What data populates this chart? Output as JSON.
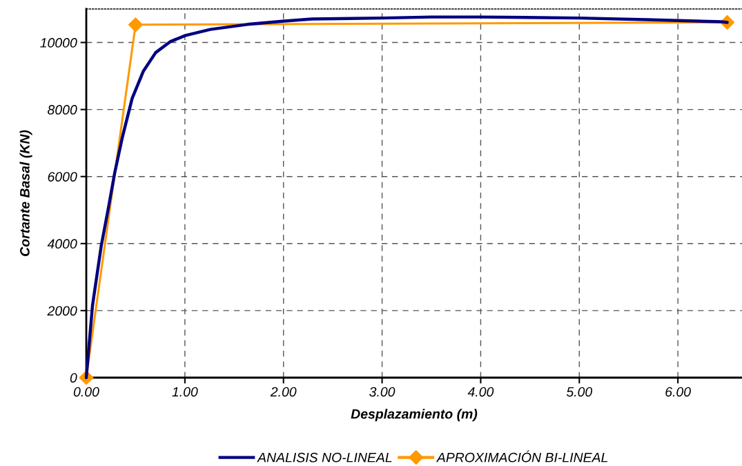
{
  "chart_data": {
    "type": "line",
    "xlabel": "Desplazamiento (m)",
    "ylabel": "Cortante Basal (KN)",
    "xlim": [
      0,
      6.65
    ],
    "ylim": [
      0,
      11000
    ],
    "xticks": [
      {
        "value": 0,
        "label": "0.00"
      },
      {
        "value": 1,
        "label": "1.00"
      },
      {
        "value": 2,
        "label": "2.00"
      },
      {
        "value": 3,
        "label": "3.00"
      },
      {
        "value": 4,
        "label": "4.00"
      },
      {
        "value": 5,
        "label": "5.00"
      },
      {
        "value": 6,
        "label": "6.00"
      }
    ],
    "yticks": [
      0,
      2000,
      4000,
      6000,
      8000,
      10000
    ],
    "grid": true,
    "legend": "bottom",
    "line_style": "solid",
    "series": [
      {
        "name": "ANALISIS NO-LINEAL",
        "color": "#000080",
        "marker": "none",
        "x": [
          0,
          0.063,
          0.151,
          0.226,
          0.289,
          0.365,
          0.465,
          0.578,
          0.704,
          0.855,
          1.006,
          1.258,
          1.634,
          2.01,
          2.29,
          3.0,
          3.5,
          4.0,
          5.0,
          5.69,
          6.44,
          6.5
        ],
        "values": [
          0,
          2150,
          3920,
          5090,
          6120,
          7160,
          8330,
          9140,
          9700,
          10030,
          10210,
          10390,
          10540,
          10640,
          10700,
          10730,
          10760,
          10760,
          10730,
          10680,
          10620,
          10600
        ]
      },
      {
        "name": "APROXIMACIÓN BI-LINEAL",
        "color": "#ff9900",
        "marker": "diamond",
        "x": [
          0,
          0.5,
          6.5
        ],
        "values": [
          0,
          10530,
          10600
        ]
      }
    ]
  }
}
